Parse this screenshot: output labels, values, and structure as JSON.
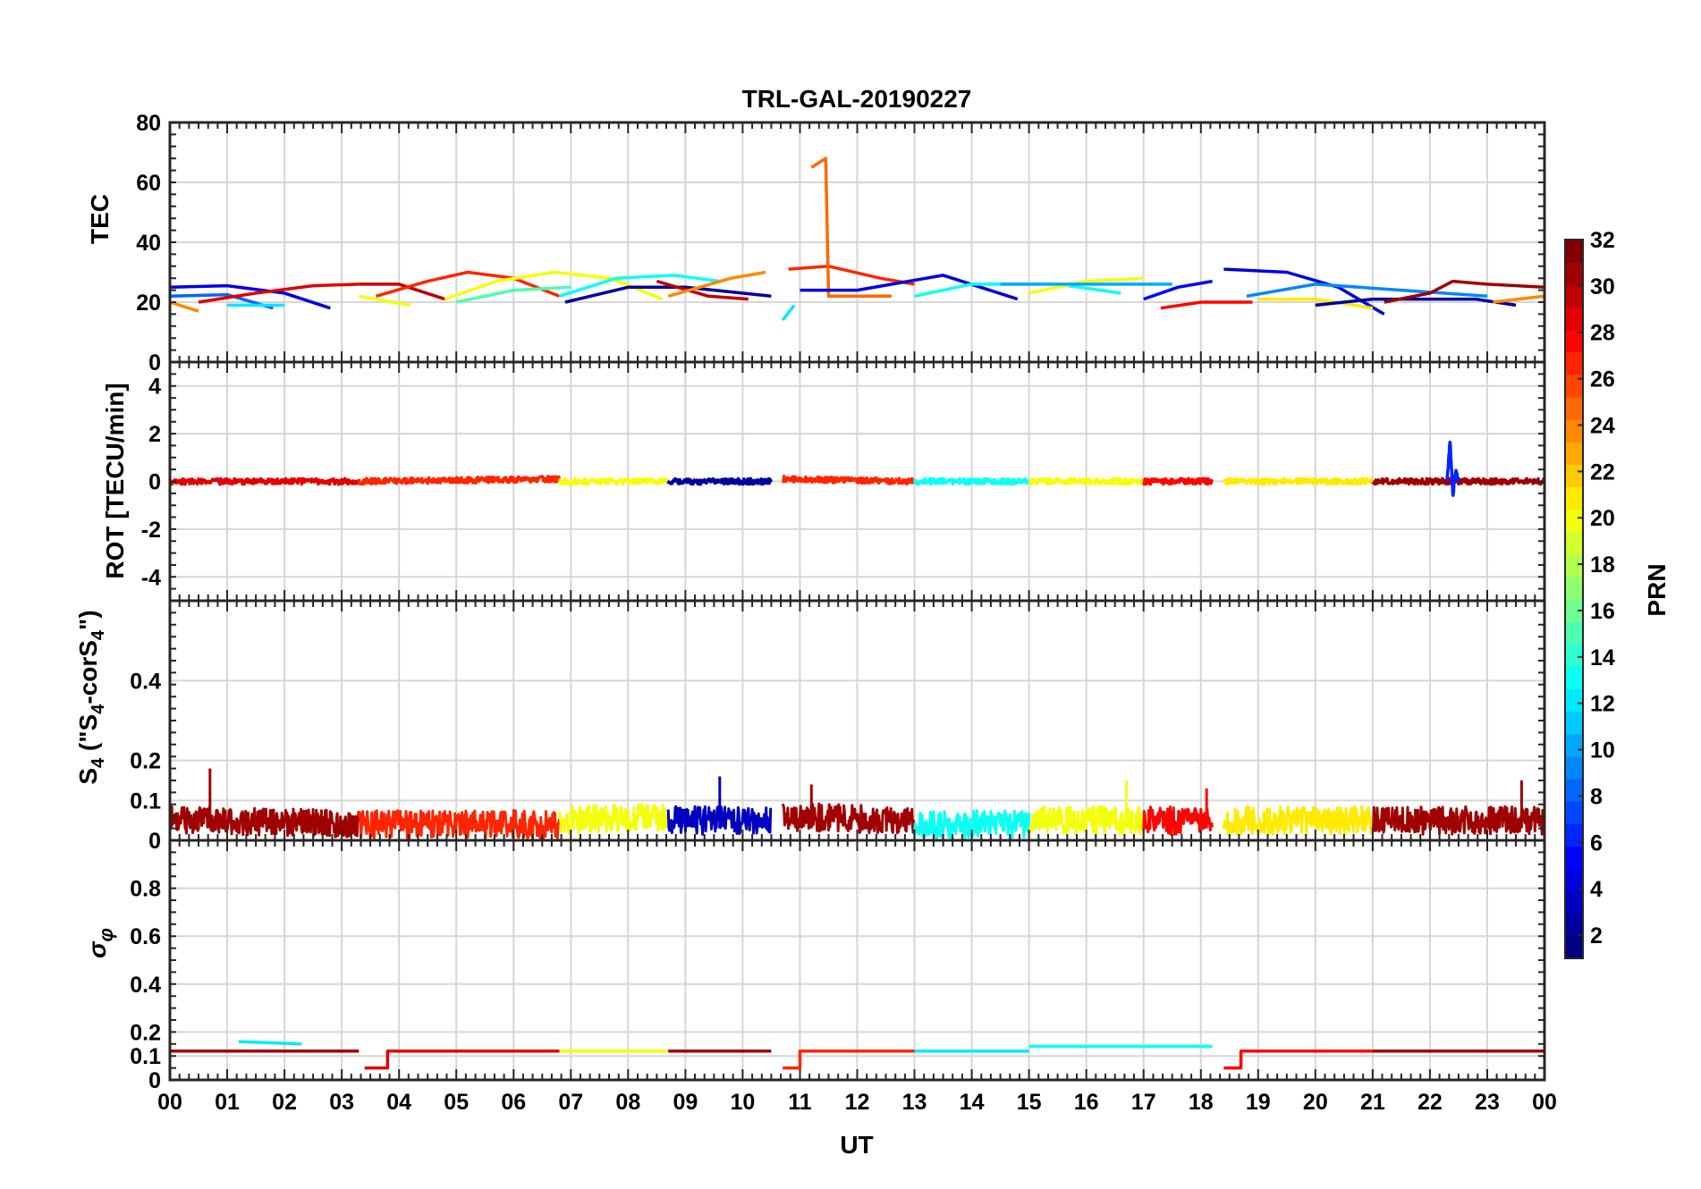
{
  "title": "TRL-GAL-20190227",
  "x_axis": {
    "label": "UT",
    "ticks": [
      "00",
      "01",
      "02",
      "03",
      "04",
      "05",
      "06",
      "07",
      "08",
      "09",
      "10",
      "11",
      "12",
      "13",
      "14",
      "15",
      "16",
      "17",
      "18",
      "19",
      "20",
      "21",
      "22",
      "23",
      "00"
    ]
  },
  "colorbar": {
    "label": "PRN",
    "range": [
      1,
      32
    ],
    "ticks": [
      "2",
      "4",
      "6",
      "8",
      "10",
      "12",
      "14",
      "16",
      "18",
      "20",
      "22",
      "24",
      "26",
      "28",
      "30",
      "32"
    ],
    "colormap": "jet"
  },
  "panels": {
    "tec": {
      "ylabel": "TEC",
      "ticks": [
        "0",
        "20",
        "40",
        "60",
        "80"
      ]
    },
    "rot": {
      "ylabel": "ROT [TECU/min]",
      "ticks": [
        "-4",
        "-2",
        "0",
        "2",
        "4"
      ]
    },
    "s4": {
      "ylabel_main": "S",
      "ylabel_sub": "4",
      "ylabel_rest1": " (\"S",
      "ylabel_rest2": "-corS",
      "ylabel_rest3": "\")",
      "ticks": [
        "0",
        "0.1",
        "0.2",
        "0.4"
      ]
    },
    "sigma": {
      "ylabel_main": "σ",
      "ylabel_sub": "φ",
      "ticks": [
        "0",
        "0.1",
        "0.2",
        "0.4",
        "0.6",
        "0.8"
      ]
    }
  },
  "chart_data": [
    {
      "type": "line",
      "title": "TRL-GAL-20190227",
      "ylabel": "TEC",
      "xlabel": "",
      "xlim": [
        0,
        24
      ],
      "ylim": [
        0,
        80
      ],
      "grid": true,
      "series": [
        {
          "prn": 4,
          "x": [
            0,
            1,
            2,
            2.8
          ],
          "y": [
            25,
            25.5,
            23,
            18
          ]
        },
        {
          "prn": 8,
          "x": [
            0,
            1,
            1.8
          ],
          "y": [
            22,
            22.5,
            18
          ]
        },
        {
          "prn": 24,
          "x": [
            0,
            0.5
          ],
          "y": [
            20,
            17
          ]
        },
        {
          "prn": 29,
          "x": [
            0.5,
            1.5,
            2.5,
            3.3
          ],
          "y": [
            20,
            23,
            25.5,
            26
          ]
        },
        {
          "prn": 12,
          "x": [
            1,
            2
          ],
          "y": [
            19,
            19
          ]
        },
        {
          "prn": 20,
          "x": [
            3.3,
            4.2
          ],
          "y": [
            22,
            19
          ]
        },
        {
          "prn": 30,
          "x": [
            3.3,
            4.0,
            4.8
          ],
          "y": [
            26,
            26,
            21
          ]
        },
        {
          "prn": 27,
          "x": [
            3.6,
            4.5,
            5.2,
            6,
            6.8
          ],
          "y": [
            22,
            27,
            30,
            28,
            22
          ]
        },
        {
          "prn": 20,
          "x": [
            4.8,
            5.7,
            6.7,
            7.7,
            8.6
          ],
          "y": [
            21,
            27,
            30,
            28,
            21
          ]
        },
        {
          "prn": 15,
          "x": [
            5,
            6,
            7
          ],
          "y": [
            20,
            24,
            25
          ]
        },
        {
          "prn": 13,
          "x": [
            6.8,
            7.8,
            8.8,
            9.6
          ],
          "y": [
            22,
            28,
            29,
            27
          ]
        },
        {
          "prn": 2,
          "x": [
            6.9,
            8,
            9,
            10.5
          ],
          "y": [
            20,
            25,
            25,
            22
          ]
        },
        {
          "prn": 30,
          "x": [
            8.5,
            9.4,
            10.1
          ],
          "y": [
            27,
            22,
            21
          ]
        },
        {
          "prn": 24,
          "x": [
            8.7,
            9.8,
            10.4
          ],
          "y": [
            22,
            28,
            30
          ]
        },
        {
          "prn": 12,
          "x": [
            10.7,
            10.9
          ],
          "y": [
            14,
            19
          ]
        },
        {
          "prn": 27,
          "x": [
            10.8,
            11.5,
            12.4,
            13
          ],
          "y": [
            31,
            32,
            28,
            26
          ]
        },
        {
          "prn": 25,
          "x": [
            11.2,
            11.45,
            11.5,
            12.6
          ],
          "y": [
            65,
            68,
            22,
            22
          ]
        },
        {
          "prn": 4,
          "x": [
            11,
            12,
            13.5,
            14.8
          ],
          "y": [
            24,
            24,
            29,
            21
          ]
        },
        {
          "prn": 13,
          "x": [
            13,
            14,
            15.5,
            16.6
          ],
          "y": [
            22,
            26,
            26,
            23
          ]
        },
        {
          "prn": 20,
          "x": [
            15,
            16,
            17
          ],
          "y": [
            23,
            27,
            28
          ]
        },
        {
          "prn": 10,
          "x": [
            14.5,
            16,
            17.5
          ],
          "y": [
            26,
            26,
            26
          ]
        },
        {
          "prn": 5,
          "x": [
            17,
            17.6,
            18.2
          ],
          "y": [
            21,
            25,
            27
          ]
        },
        {
          "prn": 28,
          "x": [
            17.3,
            18,
            18.9
          ],
          "y": [
            18,
            20,
            20
          ]
        },
        {
          "prn": 4,
          "x": [
            18.4,
            19.5,
            20.4,
            21.2
          ],
          "y": [
            31,
            30,
            25,
            16
          ]
        },
        {
          "prn": 9,
          "x": [
            18.8,
            20,
            21.5,
            23
          ],
          "y": [
            22,
            26,
            24,
            22
          ]
        },
        {
          "prn": 21,
          "x": [
            19,
            20,
            21
          ],
          "y": [
            21,
            21,
            18
          ]
        },
        {
          "prn": 2,
          "x": [
            20,
            21,
            22,
            22.8,
            23.5
          ],
          "y": [
            19,
            21,
            21,
            21,
            19
          ]
        },
        {
          "prn": 31,
          "x": [
            21.2,
            22,
            22.4,
            23,
            24
          ],
          "y": [
            20,
            23,
            27,
            26,
            25
          ]
        },
        {
          "prn": 24,
          "x": [
            23.1,
            24
          ],
          "y": [
            20,
            22
          ]
        }
      ]
    },
    {
      "type": "line",
      "ylabel": "ROT [TECU/min]",
      "xlim": [
        0,
        24
      ],
      "ylim": [
        -5,
        5
      ],
      "grid": true,
      "series": [
        {
          "prn": 29,
          "x": [
            0,
            3.3
          ],
          "y": [
            0,
            0
          ]
        },
        {
          "prn": 27,
          "x": [
            3.3,
            6.8
          ],
          "y": [
            0,
            0.1
          ]
        },
        {
          "prn": 20,
          "x": [
            6.8,
            8.7
          ],
          "y": [
            0,
            0
          ]
        },
        {
          "prn": 2,
          "x": [
            8.7,
            10.5
          ],
          "y": [
            0,
            0
          ]
        },
        {
          "prn": 27,
          "x": [
            10.7,
            13.0
          ],
          "y": [
            0.1,
            0
          ]
        },
        {
          "prn": 13,
          "x": [
            13.0,
            15.0
          ],
          "y": [
            0,
            0
          ]
        },
        {
          "prn": 20,
          "x": [
            15.0,
            17.0
          ],
          "y": [
            0,
            0
          ]
        },
        {
          "prn": 28,
          "x": [
            17.0,
            18.2
          ],
          "y": [
            0,
            0
          ]
        },
        {
          "prn": 21,
          "x": [
            18.4,
            21.0
          ],
          "y": [
            0,
            0
          ]
        },
        {
          "prn": 31,
          "x": [
            21.0,
            24.0
          ],
          "y": [
            0,
            0
          ]
        },
        {
          "prn": 6,
          "x": [
            22.3,
            22.35,
            22.4,
            22.45,
            22.5
          ],
          "y": [
            0,
            1.7,
            -0.6,
            0.5,
            0
          ]
        }
      ]
    },
    {
      "type": "line",
      "ylabel": "S4 (\"S4-corS4\")",
      "xlim": [
        0,
        24
      ],
      "ylim": [
        0,
        0.6
      ],
      "grid": true,
      "series": [
        {
          "prn": 31,
          "x": [
            0,
            3.3
          ],
          "y": [
            0.05,
            0.04
          ],
          "peak": {
            "x": 0.7,
            "y": 0.18
          }
        },
        {
          "prn": 27,
          "x": [
            3.3,
            6.8
          ],
          "y": [
            0.04,
            0.04
          ]
        },
        {
          "prn": 20,
          "x": [
            6.8,
            8.7
          ],
          "y": [
            0.05,
            0.06
          ]
        },
        {
          "prn": 3,
          "x": [
            8.7,
            10.5
          ],
          "y": [
            0.05,
            0.05
          ],
          "peak": {
            "x": 9.6,
            "y": 0.16
          }
        },
        {
          "prn": 31,
          "x": [
            10.7,
            13.0
          ],
          "y": [
            0.06,
            0.05
          ],
          "peak": {
            "x": 11.2,
            "y": 0.14
          }
        },
        {
          "prn": 13,
          "x": [
            13.0,
            15.0
          ],
          "y": [
            0.04,
            0.04
          ]
        },
        {
          "prn": 20,
          "x": [
            15.0,
            17.0
          ],
          "y": [
            0.05,
            0.05
          ],
          "peak": {
            "x": 16.7,
            "y": 0.15
          }
        },
        {
          "prn": 28,
          "x": [
            17.0,
            18.2
          ],
          "y": [
            0.05,
            0.05
          ],
          "peak": {
            "x": 18.1,
            "y": 0.13
          }
        },
        {
          "prn": 21,
          "x": [
            18.4,
            21.0
          ],
          "y": [
            0.05,
            0.05
          ]
        },
        {
          "prn": 31,
          "x": [
            21.0,
            24.0
          ],
          "y": [
            0.05,
            0.05
          ],
          "peak": {
            "x": 23.6,
            "y": 0.15
          }
        }
      ]
    },
    {
      "type": "line",
      "ylabel": "σφ",
      "xlabel": "UT",
      "xlim": [
        0,
        24
      ],
      "ylim": [
        0,
        1
      ],
      "grid": true,
      "series": [
        {
          "prn": 31,
          "x": [
            0,
            3.3
          ],
          "y": [
            0.12,
            0.12
          ]
        },
        {
          "prn": 12,
          "x": [
            1.2,
            2.3
          ],
          "y": [
            0.16,
            0.15
          ]
        },
        {
          "prn": 29,
          "x": [
            3.4,
            3.8,
            3.8,
            6.8
          ],
          "y": [
            0.05,
            0.05,
            0.12,
            0.12
          ]
        },
        {
          "prn": 20,
          "x": [
            6.8,
            8.7
          ],
          "y": [
            0.12,
            0.12
          ]
        },
        {
          "prn": 31,
          "x": [
            8.7,
            10.5
          ],
          "y": [
            0.12,
            0.12
          ]
        },
        {
          "prn": 27,
          "x": [
            10.7,
            11.0,
            11.0,
            13.0
          ],
          "y": [
            0.05,
            0.05,
            0.12,
            0.12
          ]
        },
        {
          "prn": 12,
          "x": [
            13.0,
            15.0
          ],
          "y": [
            0.12,
            0.12
          ]
        },
        {
          "prn": 13,
          "x": [
            15.0,
            18.2
          ],
          "y": [
            0.14,
            0.14
          ]
        },
        {
          "prn": 28,
          "x": [
            18.4,
            18.7,
            18.7,
            21.0
          ],
          "y": [
            0.05,
            0.05,
            0.12,
            0.12
          ]
        },
        {
          "prn": 31,
          "x": [
            21.0,
            24.0
          ],
          "y": [
            0.12,
            0.12
          ]
        }
      ]
    }
  ]
}
